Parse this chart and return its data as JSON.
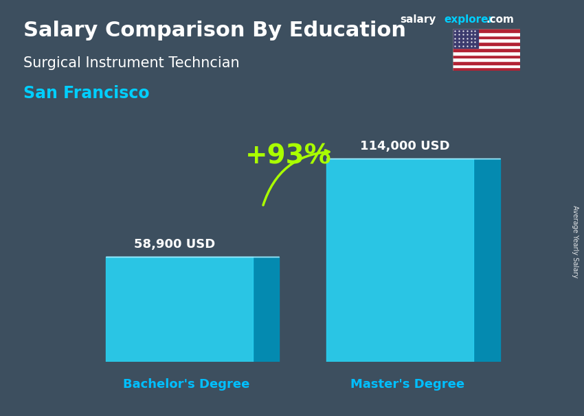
{
  "title_bold": "Salary Comparison By Education",
  "subtitle": "Surgical Instrument Techncian",
  "city": "San Francisco",
  "ylabel": "Average Yearly Salary",
  "categories": [
    "Bachelor's Degree",
    "Master's Degree"
  ],
  "values": [
    58900,
    114000
  ],
  "value_labels": [
    "58,900 USD",
    "114,000 USD"
  ],
  "pct_change": "+93%",
  "face_color": "#29D0F0",
  "side_color": "#0090B8",
  "top_color": "#A8EEFF",
  "background_color": "#3d4f5f",
  "title_color": "#FFFFFF",
  "subtitle_color": "#FFFFFF",
  "city_color": "#00CFFF",
  "value_color": "#FFFFFF",
  "pct_color": "#AAFF00",
  "xlabel_color": "#00BFFF",
  "arrow_color": "#AAFF00",
  "brand_color_salary": "#FFFFFF",
  "brand_color_explorer": "#00CFFF",
  "ylim": [
    0,
    140000
  ],
  "bar_width": 0.3,
  "title_fontsize": 22,
  "subtitle_fontsize": 15,
  "city_fontsize": 17,
  "value_fontsize": 13,
  "pct_fontsize": 28,
  "xlabel_fontsize": 13,
  "brand_fontsize": 11,
  "ylabel_fontsize": 7,
  "x_positions": [
    0.27,
    0.72
  ]
}
